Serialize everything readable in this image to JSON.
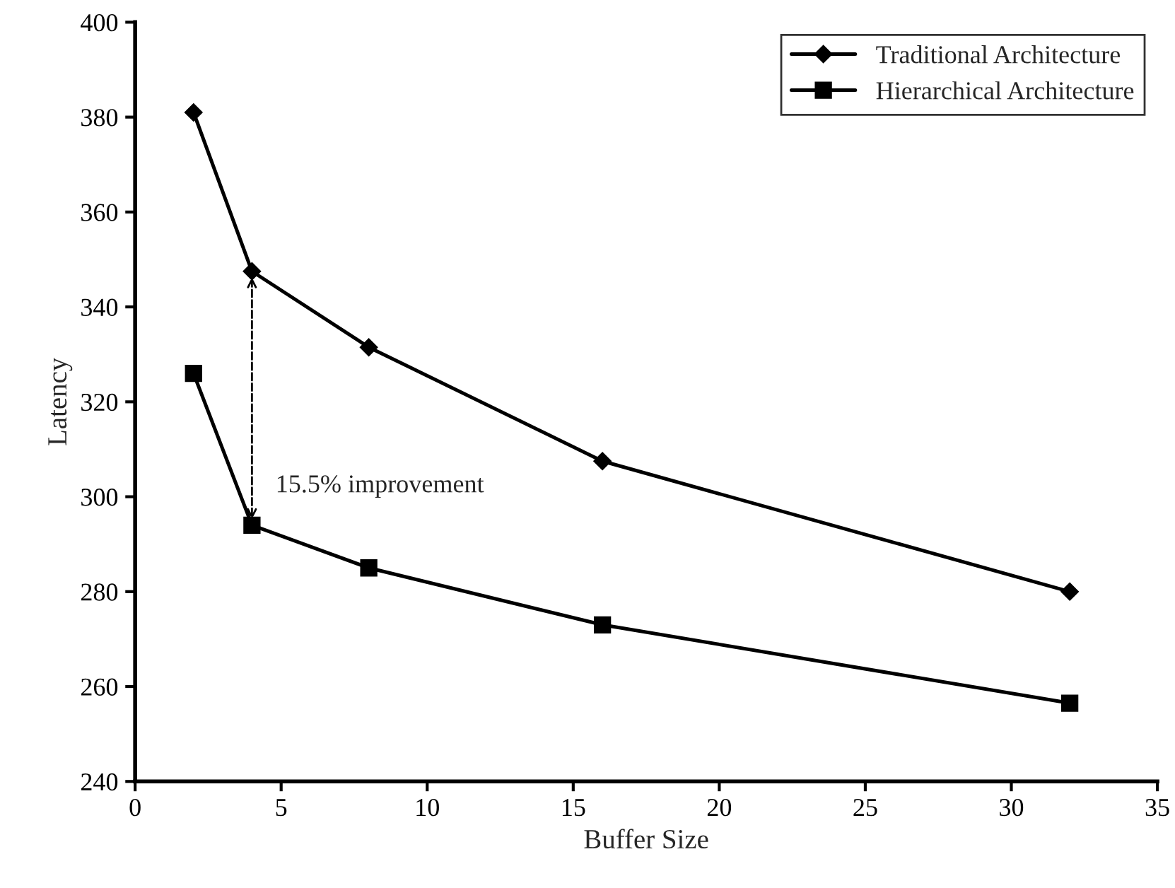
{
  "chart_data": {
    "type": "line",
    "xlabel": "Buffer Size",
    "ylabel": "Latency",
    "x": [
      2,
      4,
      8,
      16,
      32
    ],
    "series": [
      {
        "name": "Traditional Architecture",
        "color": "#000000",
        "marker": "diamond",
        "values": [
          381,
          347.5,
          331.5,
          307.5,
          280
        ]
      },
      {
        "name": "Hierarchical Architecture",
        "color": "#000000",
        "marker": "square",
        "values": [
          326,
          294,
          285,
          273,
          256.5
        ]
      }
    ],
    "xlim": [
      0,
      35
    ],
    "xticks": [
      0,
      5,
      10,
      15,
      20,
      25,
      30,
      35
    ],
    "ylim": [
      240,
      400
    ],
    "yticks": [
      240,
      260,
      280,
      300,
      320,
      340,
      360,
      380,
      400
    ],
    "annotations": [
      {
        "text": "15.5% improvement",
        "x": 4,
        "y": 294
      }
    ],
    "grid": false,
    "legend": "top right",
    "line_style": "solid"
  }
}
